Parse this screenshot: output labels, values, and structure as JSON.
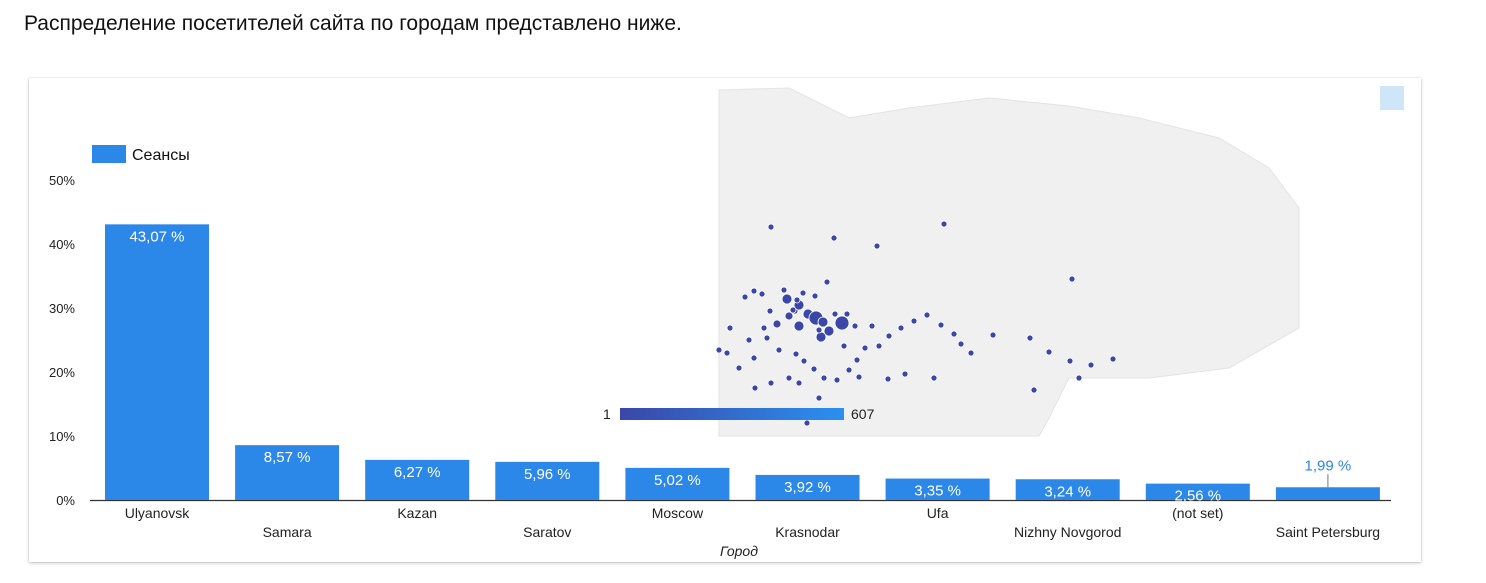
{
  "intro_text": "Распределение посетителей сайта по городам представлено ниже.",
  "colors": {
    "bar": "#2b87e8",
    "bar_label_outside": "#2b87e8",
    "map_dot": "#3a47a8",
    "map_land": "#f0f0f0",
    "legend_gradient_start": "#3a47a8",
    "legend_gradient_end": "#2b90f0"
  },
  "chart_data": {
    "type": "bar",
    "categories": [
      "Ulyanovsk",
      "Samara",
      "Kazan",
      "Saratov",
      "Moscow",
      "Krasnodar",
      "Ufa",
      "Nizhny Novgorod",
      "(not set)",
      "Saint Petersburg"
    ],
    "series": [
      {
        "name": "Сеансы",
        "values": [
          43.07,
          8.57,
          6.27,
          5.96,
          5.02,
          3.92,
          3.35,
          3.24,
          2.56,
          1.99
        ]
      }
    ],
    "value_labels": [
      "43,07 %",
      "8,57 %",
      "6,27 %",
      "5,96 %",
      "5,02 %",
      "3,92 %",
      "3,35 %",
      "3,24 %",
      "2,56 %",
      "1,99 %"
    ],
    "xlabel": "Город",
    "ylabel": "",
    "ylim": [
      0,
      50
    ],
    "yticks": [
      "0%",
      "10%",
      "20%",
      "30%",
      "40%",
      "50%"
    ],
    "legend": {
      "position": "top-left",
      "label": "Сеансы"
    },
    "grid": false
  },
  "map_legend": {
    "min": "1",
    "max": "607"
  }
}
